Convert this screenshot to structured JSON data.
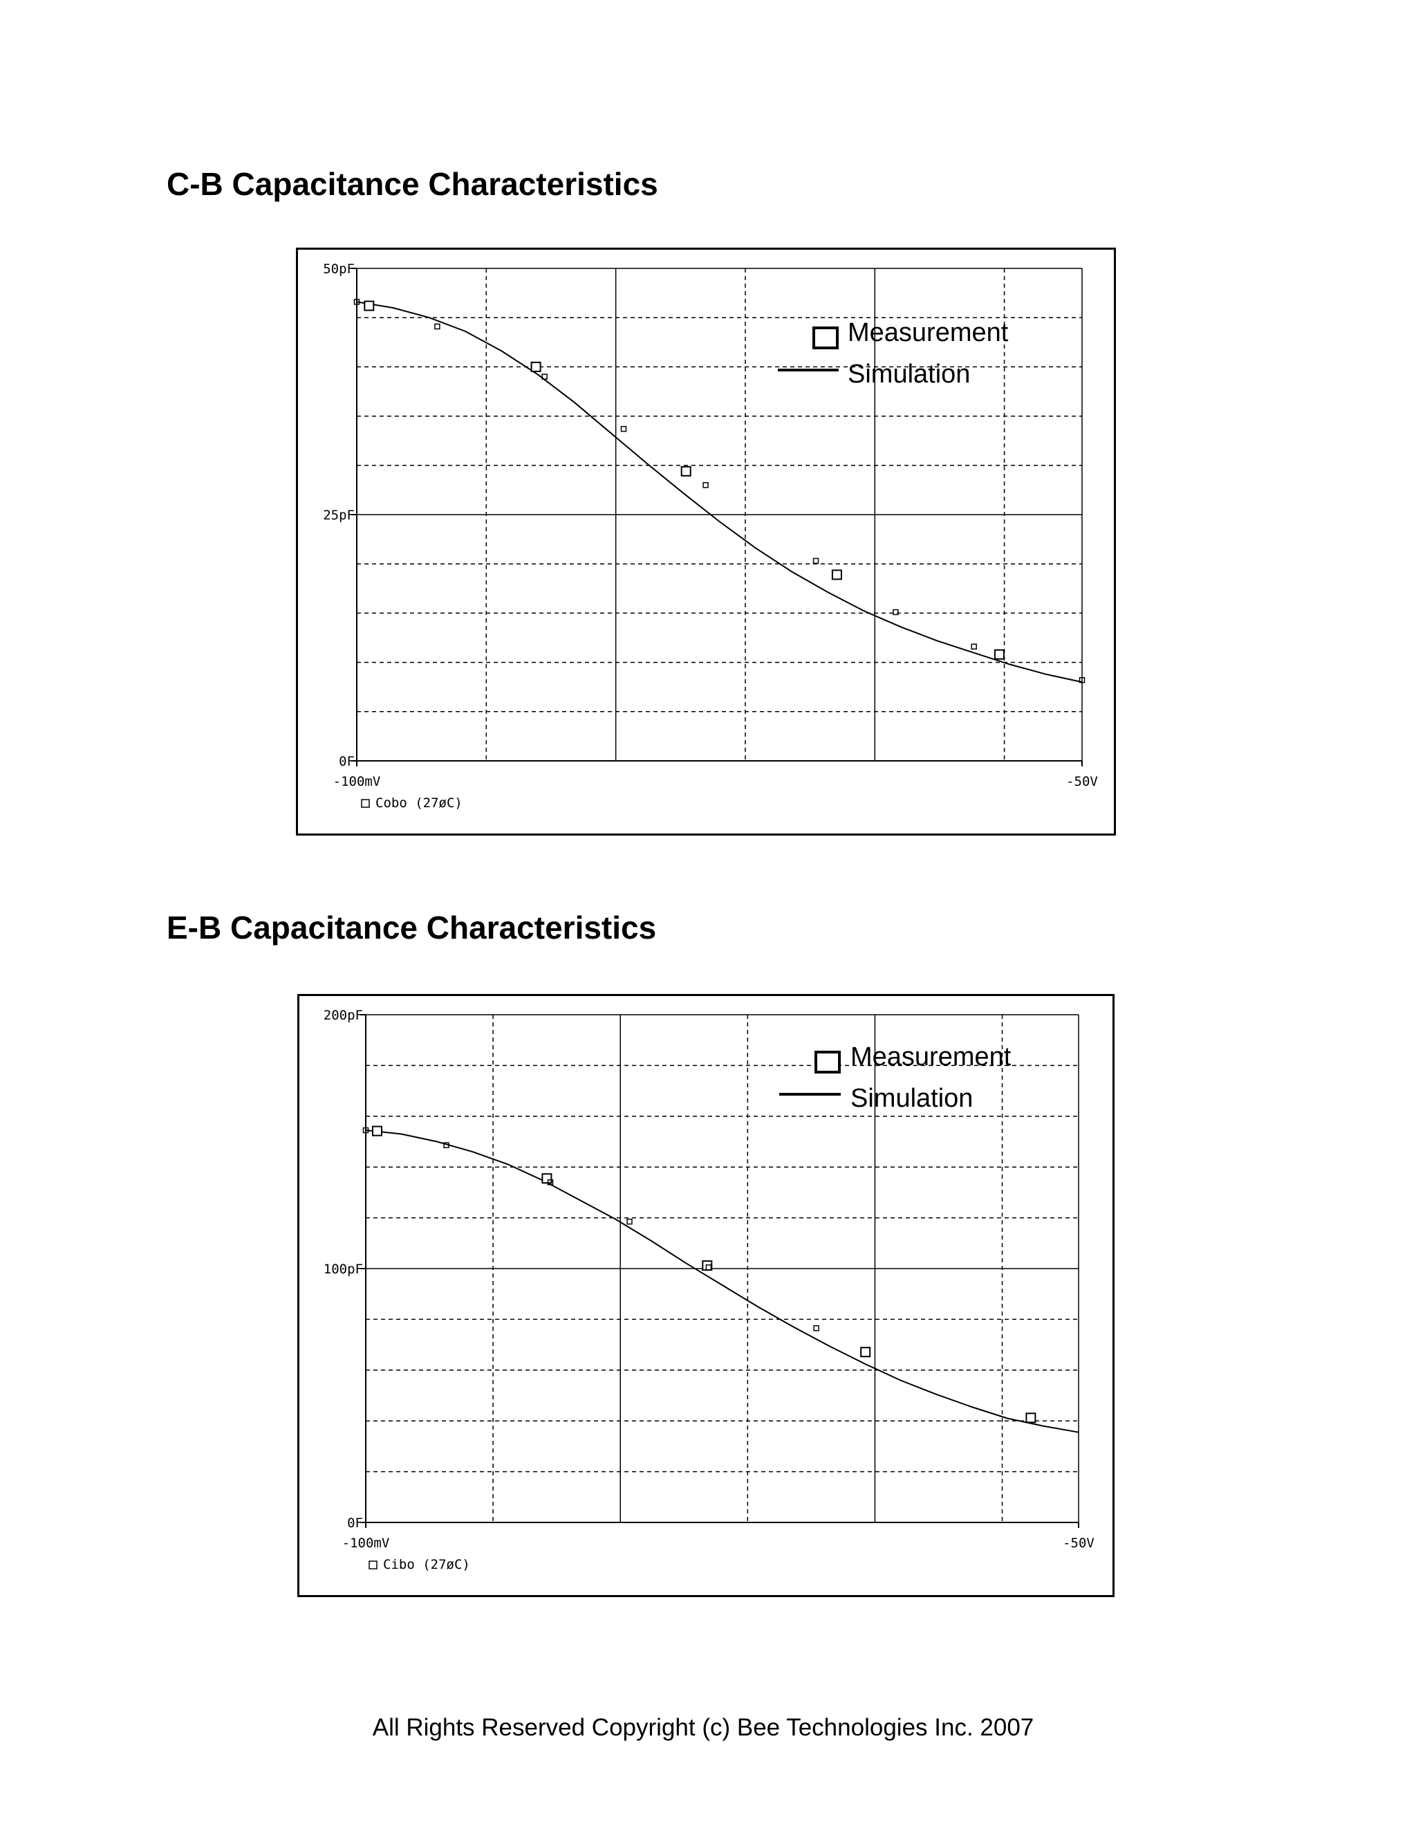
{
  "charts": [
    {
      "title": "C-B Capacitance Characteristics",
      "legend": {
        "measurement_label": "Measurement",
        "simulation_label": "Simulation"
      },
      "x_axis": {
        "left_label": "-100mV",
        "right_label": "-50V"
      },
      "y_axis": {
        "top_label": "50pF",
        "mid_label": "25pF",
        "bottom_label": "0F"
      },
      "trace_label": "Cobo (27øC)"
    },
    {
      "title": "E-B Capacitance Characteristics",
      "legend": {
        "measurement_label": "Measurement",
        "simulation_label": "Simulation"
      },
      "x_axis": {
        "left_label": "-100mV",
        "right_label": "-50V"
      },
      "y_axis": {
        "top_label": "200pF",
        "mid_label": "100pF",
        "bottom_label": "0F"
      },
      "trace_label": "Cibo (27øC)"
    }
  ],
  "footer": {
    "copyright": "All Rights Reserved Copyright (c) Bee Technologies Inc. 2007"
  },
  "colors": {
    "line": "#000000",
    "background": "#ffffff"
  },
  "chart_data": [
    {
      "type": "line",
      "title": "C-B Capacitance Characteristics",
      "xlabel": "",
      "ylabel": "",
      "xlim_labels": [
        "-100mV",
        "-50V"
      ],
      "y_unit": "pF",
      "ylim": [
        0,
        50
      ],
      "grid": true,
      "legend_position": "top-right",
      "series": [
        {
          "name": "Simulation",
          "style": "line",
          "x_fraction": [
            0.0,
            0.05,
            0.1,
            0.15,
            0.2,
            0.25,
            0.3,
            0.35,
            0.4,
            0.45,
            0.5,
            0.55,
            0.6,
            0.65,
            0.7,
            0.75,
            0.8,
            0.85,
            0.9,
            0.95,
            1.0
          ],
          "values": [
            46.6,
            46.0,
            45.0,
            43.6,
            41.6,
            39.2,
            36.4,
            33.3,
            30.2,
            27.2,
            24.3,
            21.6,
            19.2,
            17.1,
            15.2,
            13.6,
            12.2,
            11.0,
            9.8,
            8.8,
            8.0
          ]
        },
        {
          "name": "Measurement",
          "style": "markers",
          "x_fraction": [
            0.017,
            0.247,
            0.454,
            0.662,
            0.886
          ],
          "values": [
            46.2,
            40.0,
            29.4,
            18.9,
            10.8
          ]
        },
        {
          "name": "Cobo (27øC)",
          "style": "small-markers",
          "x_fraction": [
            0.0,
            0.111,
            0.259,
            0.368,
            0.481,
            0.633,
            0.743,
            0.851,
            1.0
          ],
          "values": [
            46.6,
            44.1,
            39.0,
            33.7,
            28.0,
            20.3,
            15.1,
            11.6,
            8.2
          ]
        }
      ]
    },
    {
      "type": "line",
      "title": "E-B Capacitance Characteristics",
      "xlabel": "",
      "ylabel": "",
      "xlim_labels": [
        "-100mV",
        "-50V"
      ],
      "y_unit": "pF",
      "ylim": [
        0,
        200
      ],
      "grid": true,
      "legend_position": "top-right",
      "series": [
        {
          "name": "Simulation",
          "style": "line",
          "x_fraction": [
            0.0,
            0.05,
            0.1,
            0.15,
            0.2,
            0.25,
            0.3,
            0.35,
            0.4,
            0.45,
            0.5,
            0.55,
            0.6,
            0.65,
            0.7,
            0.75,
            0.8,
            0.85,
            0.9,
            0.95,
            1.0
          ],
          "values": [
            154.5,
            153.0,
            150.0,
            146.0,
            141.0,
            134.5,
            127.0,
            119.5,
            111.0,
            102.0,
            93.5,
            85.0,
            77.0,
            69.5,
            62.5,
            56.0,
            50.5,
            45.5,
            41.0,
            38.0,
            35.5
          ]
        },
        {
          "name": "Measurement",
          "style": "markers",
          "x_fraction": [
            0.016,
            0.254,
            0.479,
            0.701,
            0.933
          ],
          "values": [
            154.2,
            135.5,
            101.2,
            67.1,
            41.2
          ]
        },
        {
          "name": "Cibo (27øC)",
          "style": "small-markers",
          "x_fraction": [
            0.0,
            0.113,
            0.259,
            0.37,
            0.481,
            0.632
          ],
          "values": [
            154.5,
            148.6,
            134.0,
            118.5,
            100.5,
            76.5
          ]
        }
      ]
    }
  ]
}
